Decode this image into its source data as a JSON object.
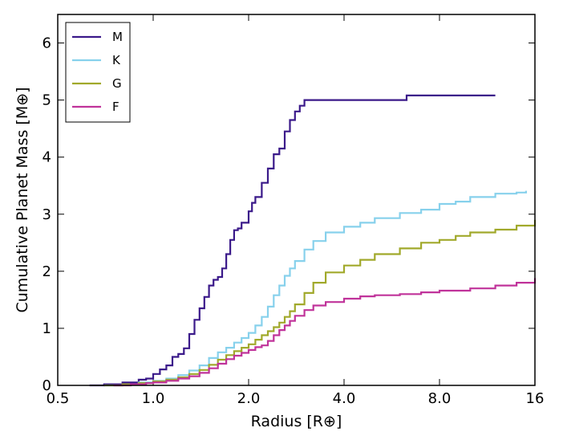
{
  "chart_data": {
    "type": "line",
    "xlabel": "Radius [R⊕]",
    "ylabel": "Cumulative Planet Mass [M⊕]",
    "x_scale": "log2",
    "xlim": [
      0.5,
      16
    ],
    "ylim": [
      0,
      6.5
    ],
    "x_ticks": [
      0.5,
      1.0,
      2.0,
      4.0,
      8.0,
      16
    ],
    "x_tick_labels": [
      "0.5",
      "1.0",
      "2.0",
      "4.0",
      "8.0",
      "16"
    ],
    "y_ticks": [
      0,
      1,
      2,
      3,
      4,
      5,
      6
    ],
    "y_tick_labels": [
      "0",
      "1",
      "2",
      "3",
      "4",
      "5",
      "6"
    ],
    "grid": false,
    "legend_position": "top-left",
    "series": [
      {
        "name": "M",
        "color": "#3b1a8a",
        "points": [
          [
            0.63,
            0.0
          ],
          [
            0.7,
            0.02
          ],
          [
            0.8,
            0.05
          ],
          [
            0.9,
            0.1
          ],
          [
            0.95,
            0.12
          ],
          [
            1.0,
            0.2
          ],
          [
            1.05,
            0.28
          ],
          [
            1.1,
            0.35
          ],
          [
            1.15,
            0.5
          ],
          [
            1.2,
            0.55
          ],
          [
            1.25,
            0.65
          ],
          [
            1.3,
            0.9
          ],
          [
            1.35,
            1.15
          ],
          [
            1.4,
            1.35
          ],
          [
            1.45,
            1.55
          ],
          [
            1.5,
            1.75
          ],
          [
            1.55,
            1.85
          ],
          [
            1.6,
            1.9
          ],
          [
            1.65,
            2.05
          ],
          [
            1.7,
            2.3
          ],
          [
            1.75,
            2.55
          ],
          [
            1.8,
            2.72
          ],
          [
            1.85,
            2.75
          ],
          [
            1.9,
            2.85
          ],
          [
            2.0,
            3.05
          ],
          [
            2.05,
            3.2
          ],
          [
            2.1,
            3.3
          ],
          [
            2.2,
            3.55
          ],
          [
            2.3,
            3.8
          ],
          [
            2.4,
            4.05
          ],
          [
            2.5,
            4.15
          ],
          [
            2.6,
            4.45
          ],
          [
            2.7,
            4.65
          ],
          [
            2.8,
            4.8
          ],
          [
            2.9,
            4.9
          ],
          [
            3.0,
            5.0
          ],
          [
            6.3,
            5.0
          ],
          [
            6.3,
            5.08
          ],
          [
            12.0,
            5.08
          ]
        ]
      },
      {
        "name": "K",
        "color": "#87d1ec",
        "points": [
          [
            0.7,
            0.0
          ],
          [
            0.8,
            0.02
          ],
          [
            0.9,
            0.05
          ],
          [
            1.0,
            0.08
          ],
          [
            1.1,
            0.12
          ],
          [
            1.2,
            0.18
          ],
          [
            1.3,
            0.26
          ],
          [
            1.4,
            0.35
          ],
          [
            1.5,
            0.48
          ],
          [
            1.6,
            0.58
          ],
          [
            1.7,
            0.66
          ],
          [
            1.8,
            0.75
          ],
          [
            1.9,
            0.83
          ],
          [
            2.0,
            0.92
          ],
          [
            2.1,
            1.05
          ],
          [
            2.2,
            1.2
          ],
          [
            2.3,
            1.38
          ],
          [
            2.4,
            1.58
          ],
          [
            2.5,
            1.75
          ],
          [
            2.6,
            1.92
          ],
          [
            2.7,
            2.05
          ],
          [
            2.8,
            2.18
          ],
          [
            3.0,
            2.38
          ],
          [
            3.2,
            2.53
          ],
          [
            3.5,
            2.68
          ],
          [
            4.0,
            2.78
          ],
          [
            4.5,
            2.85
          ],
          [
            5.0,
            2.93
          ],
          [
            6.0,
            3.02
          ],
          [
            7.0,
            3.08
          ],
          [
            8.0,
            3.18
          ],
          [
            9.0,
            3.22
          ],
          [
            10.0,
            3.3
          ],
          [
            12.0,
            3.36
          ],
          [
            14.0,
            3.38
          ],
          [
            15.0,
            3.41
          ]
        ]
      },
      {
        "name": "G",
        "color": "#a1a92b",
        "points": [
          [
            0.7,
            0.0
          ],
          [
            0.8,
            0.02
          ],
          [
            0.9,
            0.04
          ],
          [
            1.0,
            0.07
          ],
          [
            1.1,
            0.1
          ],
          [
            1.2,
            0.14
          ],
          [
            1.3,
            0.2
          ],
          [
            1.4,
            0.27
          ],
          [
            1.5,
            0.36
          ],
          [
            1.6,
            0.45
          ],
          [
            1.7,
            0.53
          ],
          [
            1.8,
            0.6
          ],
          [
            1.9,
            0.66
          ],
          [
            2.0,
            0.72
          ],
          [
            2.1,
            0.8
          ],
          [
            2.2,
            0.88
          ],
          [
            2.3,
            0.95
          ],
          [
            2.4,
            1.02
          ],
          [
            2.5,
            1.1
          ],
          [
            2.6,
            1.2
          ],
          [
            2.7,
            1.3
          ],
          [
            2.8,
            1.42
          ],
          [
            3.0,
            1.62
          ],
          [
            3.2,
            1.8
          ],
          [
            3.5,
            1.98
          ],
          [
            4.0,
            2.1
          ],
          [
            4.5,
            2.2
          ],
          [
            5.0,
            2.3
          ],
          [
            6.0,
            2.4
          ],
          [
            7.0,
            2.5
          ],
          [
            8.0,
            2.55
          ],
          [
            9.0,
            2.62
          ],
          [
            10.0,
            2.68
          ],
          [
            12.0,
            2.73
          ],
          [
            14.0,
            2.8
          ],
          [
            16.0,
            2.9
          ]
        ]
      },
      {
        "name": "F",
        "color": "#c0339a",
        "points": [
          [
            0.75,
            0.0
          ],
          [
            0.85,
            0.02
          ],
          [
            0.95,
            0.04
          ],
          [
            1.0,
            0.05
          ],
          [
            1.1,
            0.08
          ],
          [
            1.2,
            0.12
          ],
          [
            1.3,
            0.16
          ],
          [
            1.4,
            0.22
          ],
          [
            1.5,
            0.3
          ],
          [
            1.6,
            0.38
          ],
          [
            1.7,
            0.46
          ],
          [
            1.8,
            0.52
          ],
          [
            1.9,
            0.57
          ],
          [
            2.0,
            0.62
          ],
          [
            2.1,
            0.67
          ],
          [
            2.2,
            0.7
          ],
          [
            2.3,
            0.78
          ],
          [
            2.4,
            0.88
          ],
          [
            2.5,
            0.97
          ],
          [
            2.6,
            1.05
          ],
          [
            2.7,
            1.13
          ],
          [
            2.8,
            1.22
          ],
          [
            3.0,
            1.32
          ],
          [
            3.2,
            1.4
          ],
          [
            3.5,
            1.46
          ],
          [
            4.0,
            1.52
          ],
          [
            4.5,
            1.56
          ],
          [
            5.0,
            1.58
          ],
          [
            6.0,
            1.6
          ],
          [
            7.0,
            1.63
          ],
          [
            8.0,
            1.66
          ],
          [
            10.0,
            1.7
          ],
          [
            12.0,
            1.75
          ],
          [
            14.0,
            1.8
          ],
          [
            16.0,
            1.88
          ]
        ]
      }
    ]
  }
}
